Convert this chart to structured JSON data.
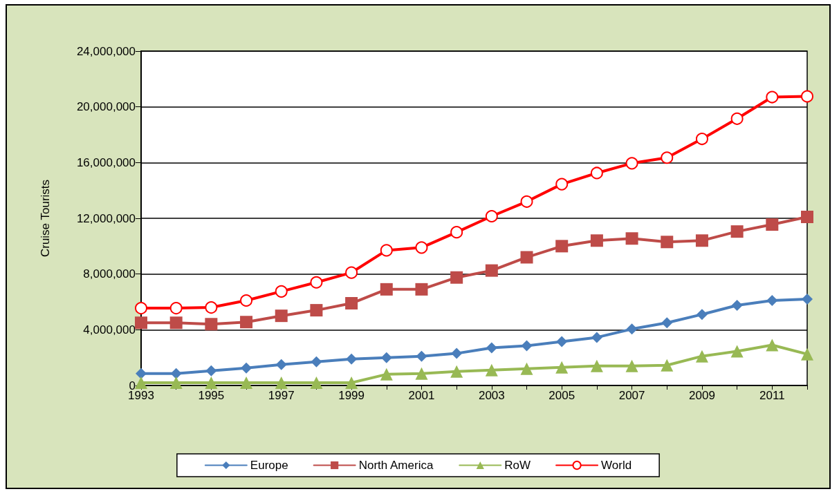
{
  "chart_data": {
    "type": "line",
    "ylabel": "Cruise Tourists",
    "x": [
      1993,
      1994,
      1995,
      1996,
      1997,
      1998,
      1999,
      2000,
      2001,
      2002,
      2003,
      2004,
      2005,
      2006,
      2007,
      2008,
      2009,
      2010,
      2011,
      2012
    ],
    "xlim": [
      1993,
      2012
    ],
    "xticks": [
      {
        "value": 1993,
        "label": "1993"
      },
      {
        "value": 1994,
        "label": null
      },
      {
        "value": 1995,
        "label": "1995"
      },
      {
        "value": 1996,
        "label": null
      },
      {
        "value": 1997,
        "label": "1997"
      },
      {
        "value": 1998,
        "label": null
      },
      {
        "value": 1999,
        "label": "1999"
      },
      {
        "value": 2000,
        "label": null
      },
      {
        "value": 2001,
        "label": "2001"
      },
      {
        "value": 2002,
        "label": null
      },
      {
        "value": 2003,
        "label": "2003"
      },
      {
        "value": 2004,
        "label": null
      },
      {
        "value": 2005,
        "label": "2005"
      },
      {
        "value": 2006,
        "label": null
      },
      {
        "value": 2007,
        "label": "2007"
      },
      {
        "value": 2008,
        "label": null
      },
      {
        "value": 2009,
        "label": "2009"
      },
      {
        "value": 2010,
        "label": null
      },
      {
        "value": 2011,
        "label": "2011"
      },
      {
        "value": 2012,
        "label": null
      }
    ],
    "ylim": [
      0,
      24000000
    ],
    "yticks": [
      {
        "value": 0,
        "label": "0"
      },
      {
        "value": 4000000,
        "label": "4,000,000"
      },
      {
        "value": 8000000,
        "label": "8,000,000"
      },
      {
        "value": 12000000,
        "label": "12,000,000"
      },
      {
        "value": 16000000,
        "label": "16,000,000"
      },
      {
        "value": 20000000,
        "label": "20,000,000"
      },
      {
        "value": 24000000,
        "label": "24,000,000"
      }
    ],
    "grid": "y",
    "legend": "bottom",
    "line_style": "solid",
    "series": [
      {
        "name": "Europe",
        "color": "#4a7ebb",
        "marker": "diamond",
        "values": [
          850000,
          850000,
          1050000,
          1250000,
          1500000,
          1700000,
          1900000,
          2000000,
          2100000,
          2300000,
          2700000,
          2850000,
          3150000,
          3450000,
          4050000,
          4500000,
          5100000,
          5750000,
          6100000,
          6200000
        ]
      },
      {
        "name": "North America",
        "color": "#be4b48",
        "marker": "square",
        "values": [
          4500000,
          4500000,
          4400000,
          4550000,
          5000000,
          5400000,
          5900000,
          6900000,
          6900000,
          7750000,
          8250000,
          9200000,
          10000000,
          10400000,
          10550000,
          10300000,
          10400000,
          11050000,
          11550000,
          12100000
        ]
      },
      {
        "name": "RoW",
        "color": "#98b954",
        "marker": "triangle",
        "values": [
          200000,
          200000,
          200000,
          200000,
          200000,
          200000,
          200000,
          800000,
          850000,
          1000000,
          1100000,
          1200000,
          1300000,
          1400000,
          1400000,
          1450000,
          2100000,
          2450000,
          2900000,
          2250000
        ]
      },
      {
        "name": "World",
        "color": "#ff0000",
        "marker": "circle",
        "values": [
          5550000,
          5550000,
          5600000,
          6100000,
          6750000,
          7400000,
          8100000,
          9700000,
          9900000,
          11000000,
          12150000,
          13200000,
          14450000,
          15250000,
          15950000,
          16350000,
          17700000,
          19150000,
          20700000,
          20750000
        ]
      }
    ]
  }
}
